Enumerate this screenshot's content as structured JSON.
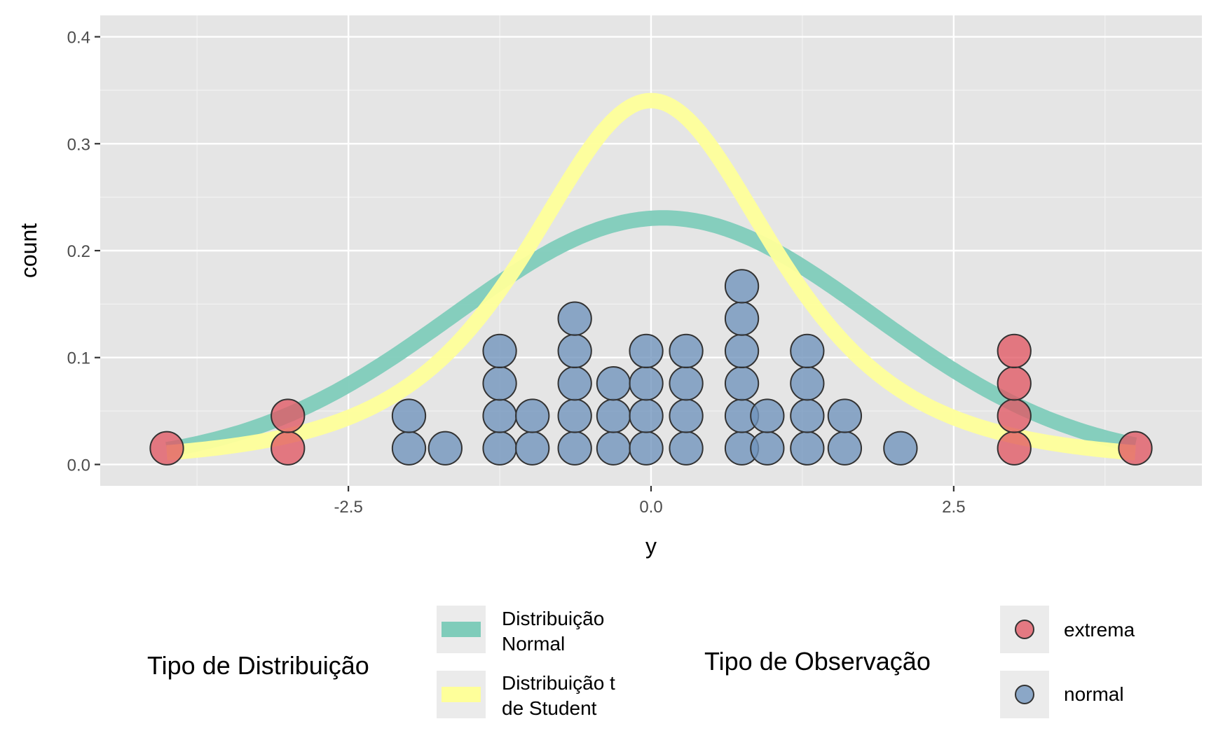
{
  "chart_data": {
    "type": "scatter",
    "title": "",
    "xlabel": "y",
    "ylabel": "count",
    "xlim": [
      -4.55,
      4.55
    ],
    "ylim": [
      -0.02,
      0.42
    ],
    "x_ticks": [
      -2.5,
      0.0,
      2.5
    ],
    "x_tick_labels": [
      "-2.5",
      "0.0",
      "2.5"
    ],
    "y_ticks": [
      0.0,
      0.1,
      0.2,
      0.3,
      0.4
    ],
    "y_tick_labels": [
      "0.0",
      "0.1",
      "0.2",
      "0.3",
      "0.4"
    ],
    "grid": true,
    "background": "#e5e5e5",
    "dot_series": [
      {
        "name": "extrema",
        "color": "#e15864",
        "stacks": [
          {
            "x": -4.0,
            "count": 1
          },
          {
            "x": -3.0,
            "count": 2
          },
          {
            "x": 3.0,
            "count": 4
          },
          {
            "x": 4.0,
            "count": 1
          }
        ]
      },
      {
        "name": "normal",
        "color": "#6f93bd",
        "stacks": [
          {
            "x": -2.0,
            "count": 2
          },
          {
            "x": -1.7,
            "count": 1
          },
          {
            "x": -1.25,
            "count": 4
          },
          {
            "x": -0.98,
            "count": 2
          },
          {
            "x": -0.63,
            "count": 5
          },
          {
            "x": -0.31,
            "count": 3
          },
          {
            "x": -0.04,
            "count": 4
          },
          {
            "x": 0.29,
            "count": 4
          },
          {
            "x": 0.75,
            "count": 6
          },
          {
            "x": 0.96,
            "count": 2
          },
          {
            "x": 1.29,
            "count": 4
          },
          {
            "x": 1.6,
            "count": 2
          },
          {
            "x": 2.06,
            "count": 1
          }
        ]
      }
    ],
    "dot_step": 0.0303,
    "dot_base": 0.0152,
    "curves": [
      {
        "name": "Distribuição Normal",
        "kind": "normal",
        "mean": 0.1,
        "sd": 1.73,
        "color": "#7fccba"
      },
      {
        "name": "Distribuição t de Student",
        "kind": "t",
        "location": 0.0,
        "scale": 1.08,
        "df": 3,
        "color": "#feff9a"
      }
    ],
    "curve_x_range": [
      -4.0,
      4.0
    ]
  },
  "legend": {
    "distribution": {
      "title": "Tipo de Distribuição",
      "items": [
        {
          "line1": "Distribuição",
          "line2": "Normal",
          "color": "#7fccba"
        },
        {
          "line1": "Distribuição t",
          "line2": "de Student",
          "color": "#feff9a"
        }
      ]
    },
    "observation": {
      "title": "Tipo de Observação",
      "items": [
        {
          "label": "extrema",
          "color": "#e15864"
        },
        {
          "label": "normal",
          "color": "#6f93bd"
        }
      ]
    }
  }
}
